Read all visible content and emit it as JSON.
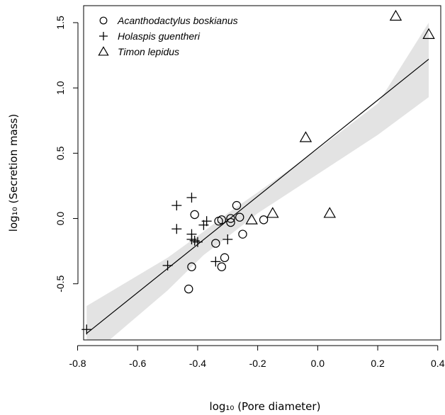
{
  "chart_data": {
    "type": "scatter",
    "xlabel": "log₁₀ (Pore diameter)",
    "ylabel": "log₁₀ (Secretion mass)",
    "xlim": [
      -0.78,
      0.41
    ],
    "ylim": [
      -0.93,
      1.63
    ],
    "x_ticks": [
      -0.8,
      -0.6,
      -0.4,
      -0.2,
      0.0,
      0.2,
      0.4
    ],
    "x_tick_labels": [
      "-0.8",
      "-0.6",
      "-0.4",
      "-0.2",
      "0.0",
      "0.2",
      "0.4"
    ],
    "y_ticks": [
      -0.5,
      0.0,
      0.5,
      1.0,
      1.5
    ],
    "y_tick_labels": [
      "-0.5",
      "0.0",
      "0.5",
      "1.0",
      "1.5"
    ],
    "grid": false,
    "legend_position": "top-left",
    "series": [
      {
        "name": "Acanthodactylus boskianus",
        "marker": "circle",
        "x": [
          -0.27,
          -0.26,
          -0.41,
          -0.32,
          -0.33,
          -0.29,
          -0.29,
          -0.25,
          -0.18,
          -0.34,
          -0.31,
          -0.42,
          -0.32,
          -0.43
        ],
        "y": [
          0.1,
          0.01,
          0.03,
          -0.01,
          -0.02,
          0.0,
          -0.03,
          -0.12,
          -0.01,
          -0.19,
          -0.3,
          -0.37,
          -0.37,
          -0.54
        ]
      },
      {
        "name": "Holaspis guentheri",
        "marker": "plus",
        "x": [
          -0.42,
          -0.47,
          -0.47,
          -0.37,
          -0.38,
          -0.42,
          -0.42,
          -0.41,
          -0.4,
          -0.3,
          -0.34,
          -0.5,
          -0.77
        ],
        "y": [
          0.16,
          0.1,
          -0.08,
          -0.02,
          -0.05,
          -0.12,
          -0.16,
          -0.17,
          -0.18,
          -0.16,
          -0.33,
          -0.36,
          -0.85
        ]
      },
      {
        "name": "Timon lepidus",
        "marker": "triangle",
        "x": [
          0.26,
          0.37,
          -0.04,
          -0.15,
          -0.22,
          0.04
        ],
        "y": [
          1.55,
          1.41,
          0.62,
          0.04,
          -0.01,
          0.04
        ]
      }
    ],
    "regression_line": {
      "x": [
        -0.77,
        0.37
      ],
      "y": [
        -0.88,
        1.22
      ]
    },
    "confidence_band": {
      "x": [
        -0.77,
        -0.5,
        -0.38,
        -0.3,
        -0.2,
        0.0,
        0.2,
        0.37
      ],
      "lower": [
        -1.08,
        -0.55,
        -0.28,
        -0.14,
        0.04,
        0.34,
        0.64,
        0.93
      ],
      "upper": [
        -0.67,
        -0.3,
        -0.1,
        0.04,
        0.2,
        0.53,
        0.88,
        1.5
      ]
    }
  }
}
